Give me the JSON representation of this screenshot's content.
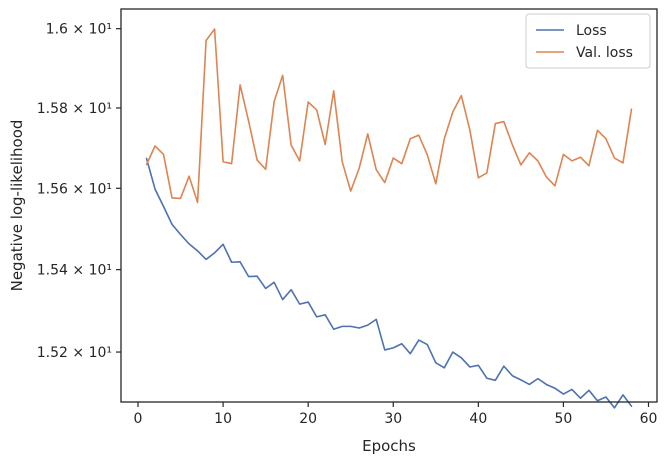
{
  "chart_data": {
    "type": "line",
    "title": "",
    "xlabel": "Epochs",
    "ylabel": "Negative log-likelihood",
    "xlim": [
      -2,
      61
    ],
    "ylim": [
      15.08,
      16.05
    ],
    "yscale": "log",
    "x_ticks": [
      0,
      10,
      20,
      30,
      40,
      50,
      60
    ],
    "x_tick_labels": [
      "0",
      "10",
      "20",
      "30",
      "40",
      "50",
      "60"
    ],
    "y_ticks": [
      15.2,
      15.4,
      15.6,
      15.8,
      16.0
    ],
    "y_tick_labels": [
      "1.52 × 10¹",
      "1.54 × 10¹",
      "1.56 × 10¹",
      "1.58 × 10¹",
      "1.6 × 10¹"
    ],
    "grid": false,
    "legend": "top-right",
    "x": [
      1,
      2,
      3,
      4,
      5,
      6,
      7,
      8,
      9,
      10,
      11,
      12,
      13,
      14,
      15,
      16,
      17,
      18,
      19,
      20,
      21,
      22,
      23,
      24,
      25,
      26,
      27,
      28,
      29,
      30,
      31,
      32,
      33,
      34,
      35,
      36,
      37,
      38,
      39,
      40,
      41,
      42,
      43,
      44,
      45,
      46,
      47,
      48,
      49,
      50,
      51,
      52,
      53,
      54,
      55,
      56,
      57,
      58
    ],
    "series": [
      {
        "name": "Loss",
        "color": "#4c72b0",
        "values": [
          15.674,
          15.598,
          15.555,
          15.511,
          15.486,
          15.463,
          15.446,
          15.425,
          15.441,
          15.462,
          15.418,
          15.419,
          15.383,
          15.384,
          15.354,
          15.369,
          15.327,
          15.351,
          15.316,
          15.321,
          15.285,
          15.29,
          15.255,
          15.262,
          15.262,
          15.258,
          15.265,
          15.279,
          15.205,
          15.21,
          15.22,
          15.196,
          15.229,
          15.218,
          15.174,
          15.162,
          15.2,
          15.186,
          15.164,
          15.168,
          15.137,
          15.132,
          15.166,
          15.143,
          15.133,
          15.122,
          15.136,
          15.122,
          15.113,
          15.099,
          15.11,
          15.089,
          15.108,
          15.083,
          15.092,
          15.066,
          15.097,
          15.07
        ]
      },
      {
        "name": "Val. loss",
        "color": "#dd8452",
        "values": [
          15.659,
          15.705,
          15.684,
          15.576,
          15.575,
          15.63,
          15.565,
          15.97,
          15.999,
          15.666,
          15.661,
          15.858,
          15.767,
          15.67,
          15.647,
          15.816,
          15.882,
          15.707,
          15.668,
          15.815,
          15.795,
          15.709,
          15.843,
          15.666,
          15.593,
          15.65,
          15.735,
          15.646,
          15.614,
          15.675,
          15.661,
          15.723,
          15.732,
          15.683,
          15.611,
          15.723,
          15.79,
          15.831,
          15.745,
          15.626,
          15.638,
          15.761,
          15.766,
          15.708,
          15.658,
          15.688,
          15.668,
          15.628,
          15.606,
          15.684,
          15.668,
          15.677,
          15.656,
          15.744,
          15.723,
          15.675,
          15.663,
          15.797
        ]
      }
    ]
  }
}
